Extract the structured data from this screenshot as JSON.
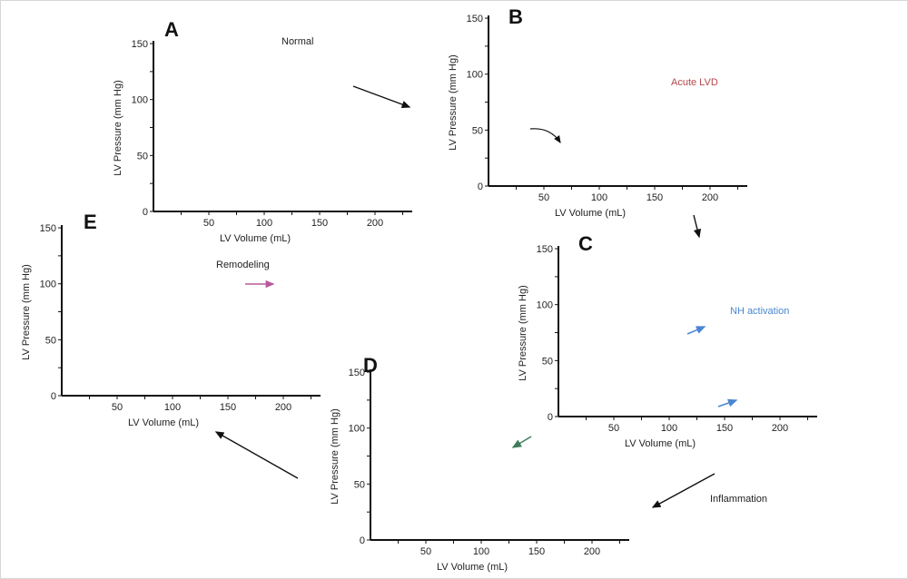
{
  "figure": {
    "x_axis_label": "LV Volume (mL)",
    "y_axis_label": "LV Pressure (mm Hg)",
    "x_tick_labels": [
      "50",
      "100",
      "150",
      "200"
    ],
    "y_tick_labels": [
      "0",
      "50",
      "100",
      "150"
    ],
    "panels": [
      {
        "letter": "A",
        "annotation": "Normal"
      },
      {
        "letter": "B",
        "annotation": "Acute LVD"
      },
      {
        "letter": "C",
        "annotation": "NH activation"
      },
      {
        "letter": "D",
        "annotation": ""
      },
      {
        "letter": "E",
        "annotation": "Remodeling"
      }
    ],
    "transition_label": "Inflammation"
  },
  "colors": {
    "normal": "#222222",
    "normal_faded": "#d9d9d9",
    "acute_lvd": "#b5464a",
    "nh_activation": "#4a86d0",
    "inflammation": "#3f7d58",
    "remodeling": "#b8599e",
    "remodeling_loop": "#c888bd",
    "prior_espvr": "#9c9c9c"
  }
}
